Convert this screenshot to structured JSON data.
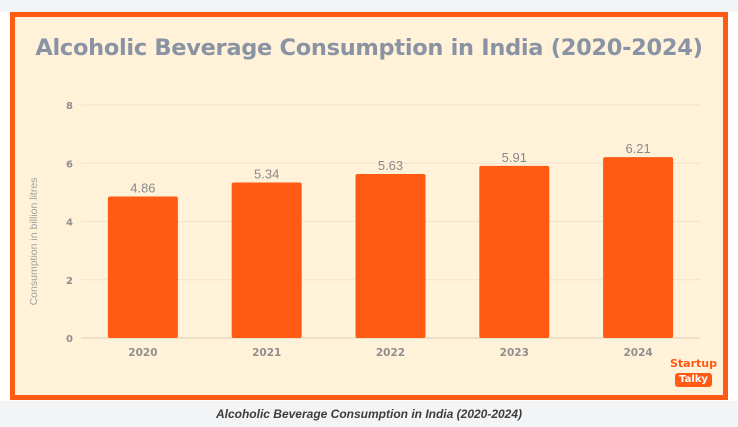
{
  "chart_data": {
    "type": "bar",
    "title": "Alcoholic Beverage Consumption in India (2020-2024)",
    "xlabel": "",
    "ylabel": "Consumption in billion litres",
    "categories": [
      "2020",
      "2021",
      "2022",
      "2023",
      "2024"
    ],
    "values": [
      4.86,
      5.34,
      5.63,
      5.91,
      6.21
    ],
    "data_labels": [
      "4.86",
      "5.34",
      "5.63",
      "5.91",
      "6.21"
    ],
    "ylim": [
      0,
      8
    ],
    "yticks": [
      0,
      2,
      4,
      6,
      8
    ],
    "grid": true,
    "legend": "none",
    "bar_color": "#ff5b14"
  },
  "colors": {
    "frame": "#ff5b14",
    "panel": "#fff2d9",
    "title": "#8a93a3",
    "axis_text": "#8f8f8f"
  },
  "logo": {
    "line1": "Startup",
    "line2": "Talky"
  },
  "caption": "Alcoholic Beverage Consumption in India (2020-2024)"
}
